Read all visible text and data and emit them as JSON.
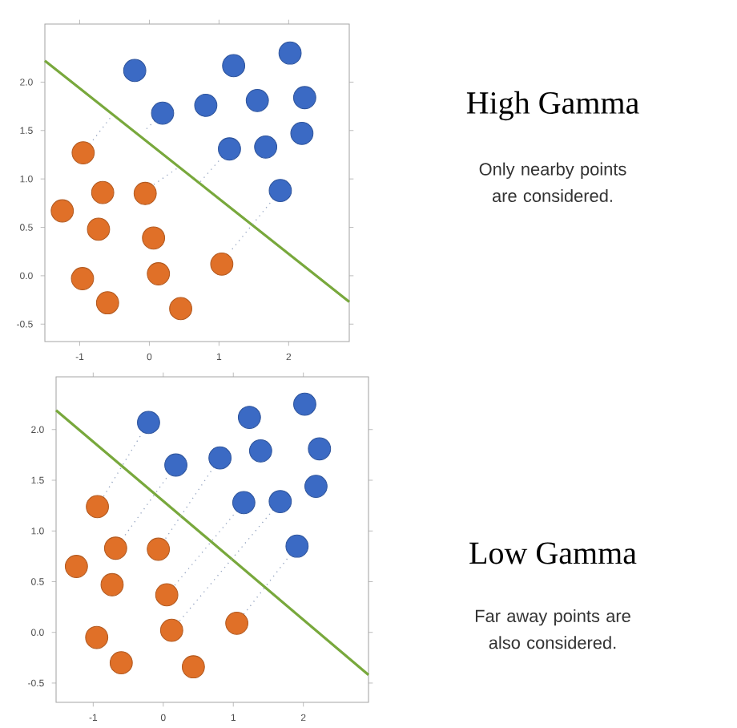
{
  "chart_data": [
    {
      "type": "scatter",
      "xlim": [
        -1.5,
        2.87
      ],
      "ylim": [
        -0.68,
        2.6
      ],
      "xticks": [
        -1,
        0,
        1,
        2
      ],
      "yticks": [
        {
          "value": -0.5,
          "label": "-0.5"
        },
        {
          "value": 0,
          "label": "0.0"
        },
        {
          "value": 0.5,
          "label": "0.5"
        },
        {
          "value": 1,
          "label": "1.0"
        },
        {
          "value": 1.5,
          "label": "1.5"
        },
        {
          "value": 2,
          "label": "2.0"
        }
      ],
      "series": [
        {
          "color": "#3b6ac4",
          "marker": "circle",
          "x": [
            -0.21,
            1.21,
            2.02,
            0.19,
            0.81,
            1.55,
            2.23,
            1.15,
            1.67,
            2.19,
            1.88
          ],
          "values": [
            2.12,
            2.17,
            2.3,
            1.68,
            1.76,
            1.81,
            1.84,
            1.31,
            1.33,
            1.47,
            0.88
          ]
        },
        {
          "color": "#e07028",
          "marker": "circle",
          "x": [
            -0.95,
            -0.67,
            -0.06,
            -1.25,
            -0.73,
            0.06,
            -0.96,
            0.13,
            1.04,
            -0.6,
            0.45
          ],
          "values": [
            1.27,
            0.86,
            0.85,
            0.67,
            0.48,
            0.39,
            -0.03,
            0.02,
            0.12,
            -0.28,
            -0.34
          ]
        },
        {
          "type": "line",
          "color": "#78a83c",
          "x": [
            -1.5,
            2.87
          ],
          "values": [
            2.22,
            -0.27
          ]
        },
        {
          "type": "line",
          "line_style": "dotted",
          "color": "#97a6c2",
          "x": [
            -0.95,
            -0.54,
            null,
            0.19,
            -0.08,
            null,
            0.0,
            0.42,
            null,
            1.15,
            0.73,
            null,
            1.88,
            1.15
          ],
          "values": [
            1.27,
            1.65,
            null,
            1.68,
            1.49,
            null,
            0.91,
            1.12,
            null,
            1.31,
            0.97,
            null,
            0.88,
            0.24
          ]
        }
      ]
    },
    {
      "type": "other",
      "title": "High Gamma",
      "subtitle": "Only nearby points are considered."
    },
    {
      "type": "scatter",
      "xlim": [
        -1.53,
        2.93
      ],
      "ylim": [
        -0.69,
        2.52
      ],
      "xticks": [
        -1,
        0,
        1,
        2
      ],
      "yticks": [
        {
          "value": -0.5,
          "label": "-0.5"
        },
        {
          "value": 0,
          "label": "0.0"
        },
        {
          "value": 0.5,
          "label": "0.5"
        },
        {
          "value": 1,
          "label": "1.0"
        },
        {
          "value": 1.5,
          "label": "1.5"
        },
        {
          "value": 2,
          "label": "2.0"
        }
      ],
      "series": [
        {
          "color": "#3b6ac4",
          "marker": "circle",
          "x": [
            -0.21,
            1.23,
            2.02,
            0.18,
            0.81,
            1.39,
            2.23,
            1.15,
            1.67,
            2.18,
            1.91
          ],
          "values": [
            2.07,
            2.12,
            2.25,
            1.65,
            1.72,
            1.79,
            1.81,
            1.28,
            1.29,
            1.44,
            0.85
          ]
        },
        {
          "color": "#e07028",
          "marker": "circle",
          "x": [
            -0.94,
            -0.68,
            -0.07,
            -1.24,
            -0.73,
            0.05,
            -0.95,
            0.12,
            1.05,
            -0.6,
            0.43
          ],
          "values": [
            1.24,
            0.83,
            0.82,
            0.65,
            0.47,
            0.37,
            -0.05,
            0.02,
            0.09,
            -0.3,
            -0.34
          ]
        },
        {
          "type": "line",
          "color": "#78a83c",
          "x": [
            -1.53,
            2.93
          ],
          "values": [
            2.19,
            -0.42
          ]
        },
        {
          "type": "line",
          "line_style": "dotted",
          "color": "#97a6c2",
          "x": [
            -0.21,
            -0.94,
            null,
            0.18,
            -0.68,
            null,
            0.81,
            -0.07,
            null,
            1.15,
            0.05,
            null,
            1.67,
            0.12,
            null,
            1.91,
            1.05
          ],
          "values": [
            2.07,
            1.24,
            null,
            1.65,
            0.83,
            null,
            1.72,
            0.82,
            null,
            1.28,
            0.37,
            null,
            1.29,
            0.02,
            null,
            0.85,
            0.09
          ]
        }
      ]
    },
    {
      "type": "other",
      "title": "Low Gamma",
      "subtitle": "Far away points are also considered."
    }
  ]
}
